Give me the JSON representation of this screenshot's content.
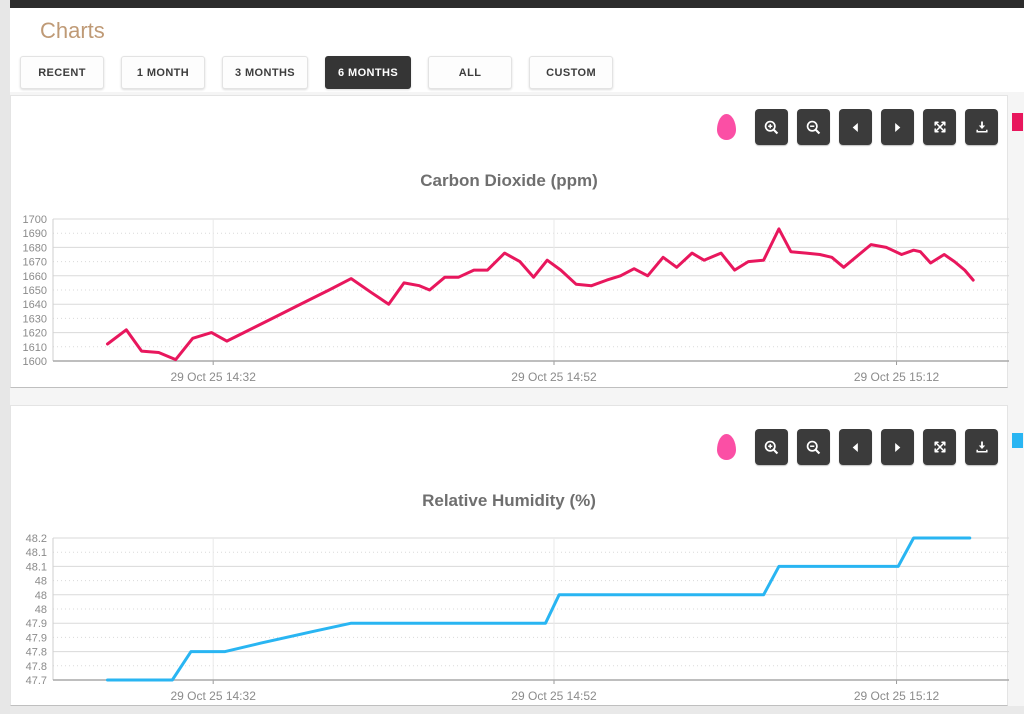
{
  "header": {
    "title": "Charts"
  },
  "range_buttons": [
    {
      "label": "RECENT",
      "active": false
    },
    {
      "label": "1 MONTH",
      "active": false
    },
    {
      "label": "3 MONTHS",
      "active": false
    },
    {
      "label": "6 MONTHS",
      "active": true
    },
    {
      "label": "ALL",
      "active": false
    },
    {
      "label": "CUSTOM",
      "active": false
    }
  ],
  "chart_toolbar": {
    "buttons": [
      "zoom-in",
      "zoom-out",
      "pan-left",
      "pan-right",
      "reset-zoom",
      "download"
    ],
    "sensor_icon_color": "#fb4fa5"
  },
  "chart_data": [
    {
      "type": "line",
      "title": "Carbon Dioxide (ppm)",
      "line_color": "#e8175d",
      "legend_color": "#e8175d",
      "ylim": [
        1600,
        1700
      ],
      "y_tick_labels": [
        "1700",
        "1690",
        "1680",
        "1670",
        "1660",
        "1650",
        "1640",
        "1630",
        "1620",
        "1610",
        "1600"
      ],
      "x_domain": [
        -3.2,
        52.9
      ],
      "x_ticks": [
        {
          "t": 6.2,
          "label": "29 Oct 25 14:32"
        },
        {
          "t": 26.2,
          "label": "29 Oct 25 14:52"
        },
        {
          "t": 46.3,
          "label": "29 Oct 25 15:12"
        }
      ],
      "grid": true,
      "legend_position": "right-edge",
      "points": [
        [
          0,
          1612
        ],
        [
          1.1,
          1622
        ],
        [
          2,
          1607
        ],
        [
          3,
          1606
        ],
        [
          4,
          1601
        ],
        [
          5,
          1616
        ],
        [
          6.1,
          1620
        ],
        [
          7,
          1614
        ],
        [
          8,
          1620
        ],
        [
          9,
          1626
        ],
        [
          10,
          1632
        ],
        [
          11,
          1638
        ],
        [
          12,
          1644
        ],
        [
          13,
          1650
        ],
        [
          14.3,
          1658
        ],
        [
          15.5,
          1648
        ],
        [
          16.5,
          1640
        ],
        [
          17.4,
          1655
        ],
        [
          18.3,
          1653
        ],
        [
          18.9,
          1650
        ],
        [
          19.8,
          1659
        ],
        [
          20.6,
          1659
        ],
        [
          21.5,
          1664
        ],
        [
          22.3,
          1664
        ],
        [
          23.3,
          1676
        ],
        [
          24.2,
          1670
        ],
        [
          25,
          1659
        ],
        [
          25.8,
          1671
        ],
        [
          26.6,
          1664
        ],
        [
          27.5,
          1654
        ],
        [
          28.4,
          1653
        ],
        [
          29.3,
          1657
        ],
        [
          30.1,
          1660
        ],
        [
          30.9,
          1665
        ],
        [
          31.7,
          1660
        ],
        [
          32.6,
          1673
        ],
        [
          33.4,
          1666
        ],
        [
          34.3,
          1676
        ],
        [
          35,
          1671
        ],
        [
          36,
          1676
        ],
        [
          36.8,
          1664
        ],
        [
          37.6,
          1670
        ],
        [
          38.5,
          1671
        ],
        [
          39.4,
          1693
        ],
        [
          40.1,
          1677
        ],
        [
          41,
          1676
        ],
        [
          41.8,
          1675
        ],
        [
          42.5,
          1673
        ],
        [
          43.2,
          1666
        ],
        [
          44.8,
          1682
        ],
        [
          45.7,
          1680
        ],
        [
          46.6,
          1675
        ],
        [
          47.3,
          1678
        ],
        [
          47.7,
          1677
        ],
        [
          48.3,
          1669
        ],
        [
          49.1,
          1675
        ],
        [
          49.7,
          1670
        ],
        [
          50.3,
          1664
        ],
        [
          50.8,
          1657
        ]
      ]
    },
    {
      "type": "line",
      "title": "Relative Humidity (%)",
      "line_color": "#29b5f2",
      "legend_color": "#29b5f2",
      "ylim": [
        47.7,
        48.2
      ],
      "y_tick_labels": [
        "48.2",
        "48.1",
        "48.1",
        "48",
        "48",
        "48",
        "47.9",
        "47.9",
        "47.8",
        "47.8",
        "47.7"
      ],
      "x_domain": [
        -3.2,
        52.9
      ],
      "x_ticks": [
        {
          "t": 6.2,
          "label": "29 Oct 25 14:32"
        },
        {
          "t": 26.2,
          "label": "29 Oct 25 14:52"
        },
        {
          "t": 46.3,
          "label": "29 Oct 25 15:12"
        }
      ],
      "grid": true,
      "legend_position": "right-edge",
      "points": [
        [
          0,
          47.7
        ],
        [
          3.8,
          47.7
        ],
        [
          4.9,
          47.8
        ],
        [
          6.9,
          47.8
        ],
        [
          9,
          47.83
        ],
        [
          12,
          47.87
        ],
        [
          14.3,
          47.9
        ],
        [
          25.7,
          47.9
        ],
        [
          26.5,
          48
        ],
        [
          38.5,
          48
        ],
        [
          39.4,
          48.1
        ],
        [
          46.4,
          48.1
        ],
        [
          47.3,
          48.2
        ],
        [
          50.6,
          48.2
        ]
      ]
    }
  ]
}
